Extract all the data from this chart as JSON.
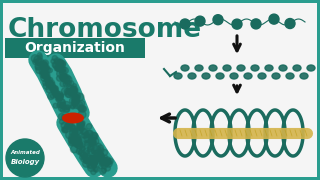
{
  "bg_color": "#2a9d8f",
  "content_bg": "#f5f5f5",
  "title_text": "Chromosome",
  "subtitle_text": "Organization",
  "title_color": "#1a7a6a",
  "subtitle_bg": "#1a7a6a",
  "subtitle_text_color": "#ffffff",
  "teal_dark": "#1a6b5e",
  "teal_body": "#2a9d8f",
  "red_color": "#cc2200",
  "yellow_color": "#d4b44a",
  "white": "#ffffff",
  "arrow_color": "#111111",
  "logo_circle_color": "#1a7a6a",
  "beads_color": "#1a7a6a",
  "fiber_color": "#1a7a6a",
  "loop_color": "#1a7a6a",
  "chrom_color": "#2a9d8f"
}
